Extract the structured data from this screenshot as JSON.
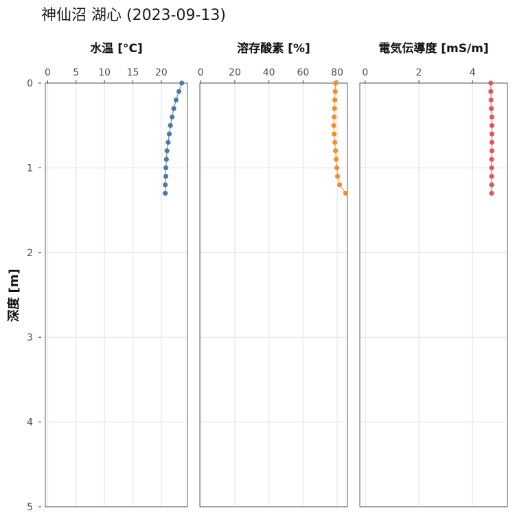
{
  "chart_data": {
    "type": "scatter",
    "title": "神仙沼 湖心 (2023-09-13)",
    "ylabel": "深度 [m]",
    "y_reversed": true,
    "ylim": [
      0,
      5
    ],
    "yticks": [
      0,
      1,
      2,
      3,
      4,
      5
    ],
    "depth": [
      0.0,
      0.1,
      0.2,
      0.3,
      0.4,
      0.5,
      0.6,
      0.7,
      0.8,
      0.9,
      1.0,
      1.1,
      1.2,
      1.3
    ],
    "panels": [
      {
        "name": "水温 [°C]",
        "color": "#4e79a7",
        "xlim": [
          -0.4,
          24.6
        ],
        "xticks": [
          0,
          5,
          10,
          15,
          20
        ],
        "values": [
          23.6,
          23.1,
          22.6,
          22.2,
          21.9,
          21.6,
          21.4,
          21.2,
          21.0,
          20.9,
          20.8,
          20.8,
          20.7,
          20.7
        ]
      },
      {
        "name": "溶存酸素 [%]",
        "color": "#f28e2b",
        "xlim": [
          -0.5,
          86.0
        ],
        "xticks": [
          0,
          20,
          40,
          60,
          80
        ],
        "values": [
          79.0,
          78.8,
          78.6,
          78.4,
          78.2,
          78.0,
          78.2,
          78.6,
          79.0,
          79.4,
          79.8,
          80.2,
          81.4,
          85.0
        ]
      },
      {
        "name": "電気伝導度 [mS/m]",
        "color": "#e15759",
        "xlim": [
          -0.2,
          5.3
        ],
        "xticks": [
          0,
          2,
          4
        ],
        "values": [
          4.68,
          4.68,
          4.69,
          4.7,
          4.72,
          4.72,
          4.72,
          4.72,
          4.72,
          4.71,
          4.71,
          4.71,
          4.71,
          4.71
        ]
      }
    ]
  }
}
